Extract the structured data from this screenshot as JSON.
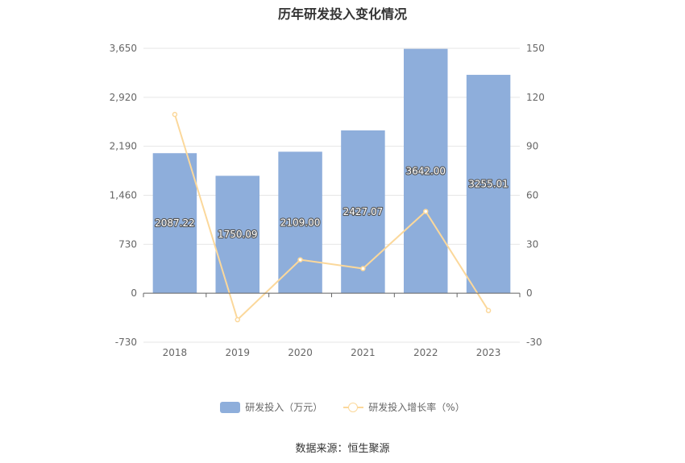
{
  "chart_data": {
    "type": "bar",
    "title": "历年研发投入变化情况",
    "categories": [
      "2018",
      "2019",
      "2020",
      "2021",
      "2022",
      "2023"
    ],
    "series": [
      {
        "name": "研发投入（万元）",
        "type": "bar",
        "axis": "left",
        "color": "#8eaedb",
        "values": [
          2087.22,
          1750.09,
          2109.0,
          2427.07,
          3642.0,
          3255.01
        ],
        "labels": [
          "2087.22",
          "1750.09",
          "2109.00",
          "2427.07",
          "3642.00",
          "3255.01"
        ]
      },
      {
        "name": "研发投入增长率（%）",
        "type": "line",
        "axis": "right",
        "color": "#fbd89b",
        "values": [
          109.5,
          -16.2,
          20.5,
          15.1,
          50.1,
          -10.6
        ]
      }
    ],
    "y_left": {
      "min": -730,
      "max": 3650,
      "ticks": [
        "-730",
        "0",
        "730",
        "1,460",
        "2,190",
        "2,920",
        "3,650"
      ]
    },
    "y_right": {
      "min": -30,
      "max": 150,
      "ticks": [
        "-30",
        "0",
        "30",
        "60",
        "90",
        "120",
        "150"
      ]
    },
    "grid": true,
    "legend_position": "bottom"
  },
  "source": "数据来源：恒生聚源"
}
